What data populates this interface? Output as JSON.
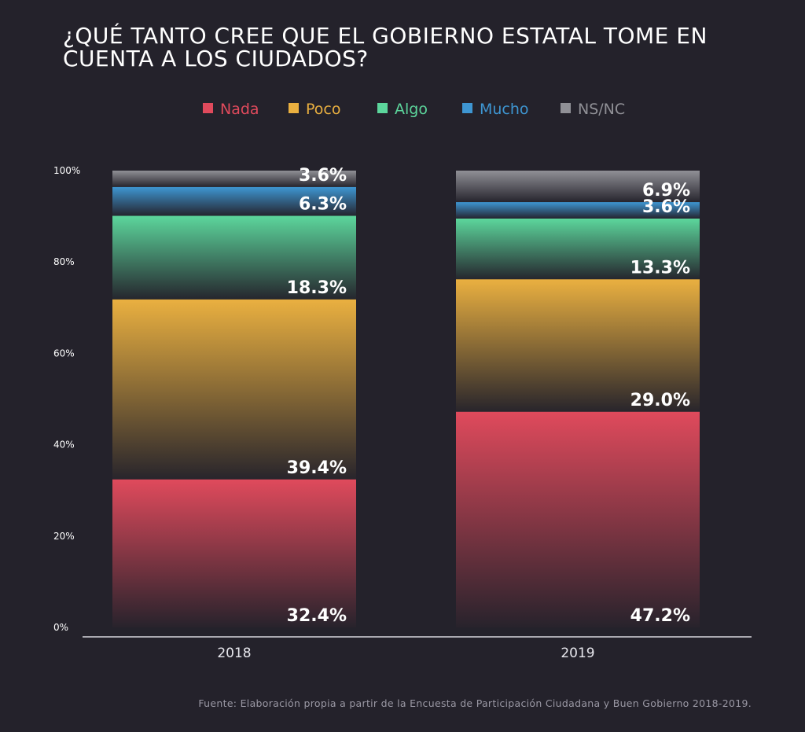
{
  "chart_data": {
    "type": "bar",
    "stacked": true,
    "title": "¿QUÉ TANTO CREE QUE EL GOBIERNO ESTATAL TOME EN CUENTA A LOS CIUDADOS?",
    "title_lines": [
      "¿QUÉ TANTO CREE QUE EL GOBIERNO ESTATAL TOME EN",
      "CUENTA A LOS CIUDADOS?"
    ],
    "categories": [
      "2018",
      "2019"
    ],
    "series": [
      {
        "name": "Nada",
        "color": "#e04a5c",
        "values": [
          32.4,
          47.2
        ],
        "labels": [
          "32.4%",
          "47.2%"
        ]
      },
      {
        "name": "Poco",
        "color": "#eab040",
        "values": [
          39.4,
          29.0
        ],
        "labels": [
          "39.4%",
          "29.0%"
        ]
      },
      {
        "name": "Algo",
        "color": "#5cd69c",
        "values": [
          18.3,
          13.3
        ],
        "labels": [
          "18.3%",
          "13.3%"
        ]
      },
      {
        "name": "Mucho",
        "color": "#3e96d2",
        "values": [
          6.3,
          3.6
        ],
        "labels": [
          "6.3%",
          "3.6%"
        ]
      },
      {
        "name": "NS/NC",
        "color": "#909096",
        "values": [
          3.6,
          6.9
        ],
        "labels": [
          "3.6%",
          "6.9%"
        ]
      }
    ],
    "ylim": [
      0,
      100
    ],
    "yticks": [
      0,
      20,
      40,
      60,
      80,
      100
    ],
    "ytick_labels": [
      "0%",
      "20%",
      "40%",
      "60%",
      "80%",
      "100%"
    ],
    "legend_position": "top-center",
    "grid": false,
    "source": "Fuente: Elaboración propia a partir de la Encuesta de Participación Ciudadana y Buen Gobierno 2018-2019."
  }
}
